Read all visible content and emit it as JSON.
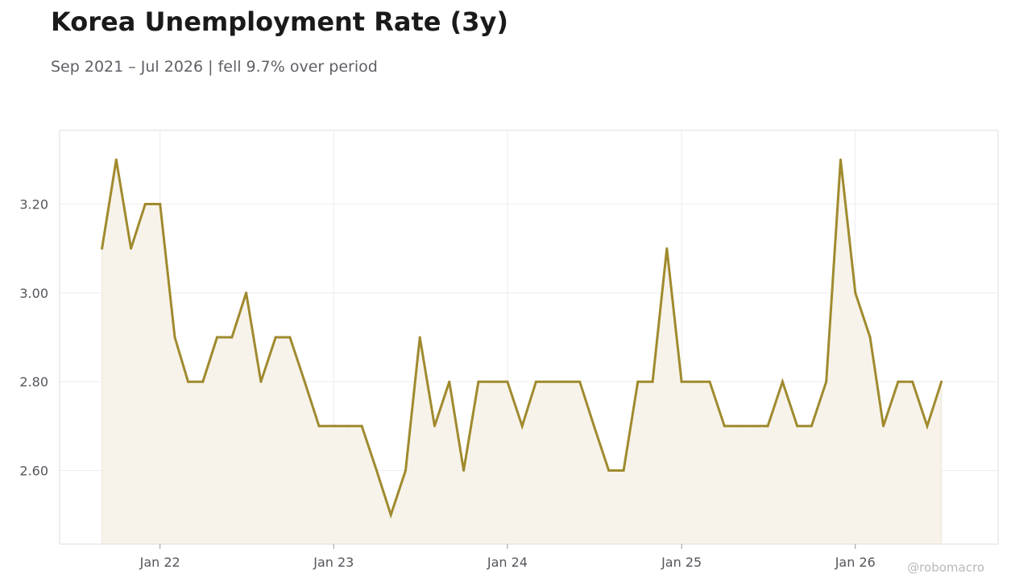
{
  "title": "Korea Unemployment Rate (3y)",
  "subtitle": "Sep 2021 – Jul 2026 | fell 9.7% over period",
  "watermark": "@robomacro",
  "colors": {
    "line": "#a08a2e",
    "fill": "#f7f3ea",
    "grid": "#ececec",
    "frame": "#dddddd"
  },
  "chart_data": {
    "type": "area",
    "x": [
      "2021-09",
      "2021-10",
      "2021-11",
      "2021-12",
      "2022-01",
      "2022-02",
      "2022-03",
      "2022-04",
      "2022-05",
      "2022-06",
      "2022-07",
      "2022-08",
      "2022-09",
      "2022-10",
      "2022-11",
      "2022-12",
      "2023-01",
      "2023-02",
      "2023-03",
      "2023-04",
      "2023-05",
      "2023-06",
      "2023-07",
      "2023-08",
      "2023-09",
      "2023-10",
      "2023-11",
      "2023-12",
      "2024-01",
      "2024-02",
      "2024-03",
      "2024-04",
      "2024-05",
      "2024-06",
      "2024-07",
      "2024-08",
      "2024-09",
      "2024-10",
      "2024-11",
      "2024-12",
      "2025-01",
      "2025-02",
      "2025-03",
      "2025-04",
      "2025-05",
      "2025-06",
      "2025-07",
      "2025-08",
      "2025-09",
      "2025-10",
      "2025-11",
      "2025-12",
      "2026-01",
      "2026-02",
      "2026-03",
      "2026-04",
      "2026-05",
      "2026-06",
      "2026-07"
    ],
    "series": [
      {
        "values": [
          3.1,
          3.3,
          3.1,
          3.2,
          3.2,
          2.9,
          2.8,
          2.8,
          2.9,
          2.9,
          3.0,
          2.8,
          2.9,
          2.9,
          2.8,
          2.7,
          2.7,
          2.7,
          2.7,
          2.6,
          2.5,
          2.6,
          2.9,
          2.7,
          2.8,
          2.6,
          2.8,
          2.8,
          2.8,
          2.7,
          2.8,
          2.8,
          2.8,
          2.8,
          2.7,
          2.6,
          2.6,
          2.8,
          2.8,
          3.1,
          2.8,
          2.8,
          2.8,
          2.7,
          2.7,
          2.7,
          2.7,
          2.8,
          2.7,
          2.7,
          2.8,
          3.3,
          3.0,
          2.9,
          2.7,
          2.8,
          2.8,
          2.7,
          2.8
        ]
      }
    ],
    "y_ticks": [
      "2.60",
      "2.80",
      "3.00",
      "3.20"
    ],
    "x_ticks": [
      {
        "label": "Jan 22",
        "date": "2022-01"
      },
      {
        "label": "Jan 23",
        "date": "2023-01"
      },
      {
        "label": "Jan 24",
        "date": "2024-01"
      },
      {
        "label": "Jan 25",
        "date": "2025-01"
      },
      {
        "label": "Jan 26",
        "date": "2026-01"
      }
    ],
    "ylim": [
      2.434,
      3.366
    ],
    "xlim": [
      "2021-06-04",
      "2026-10-28"
    ],
    "grid": true,
    "legend": "none"
  }
}
